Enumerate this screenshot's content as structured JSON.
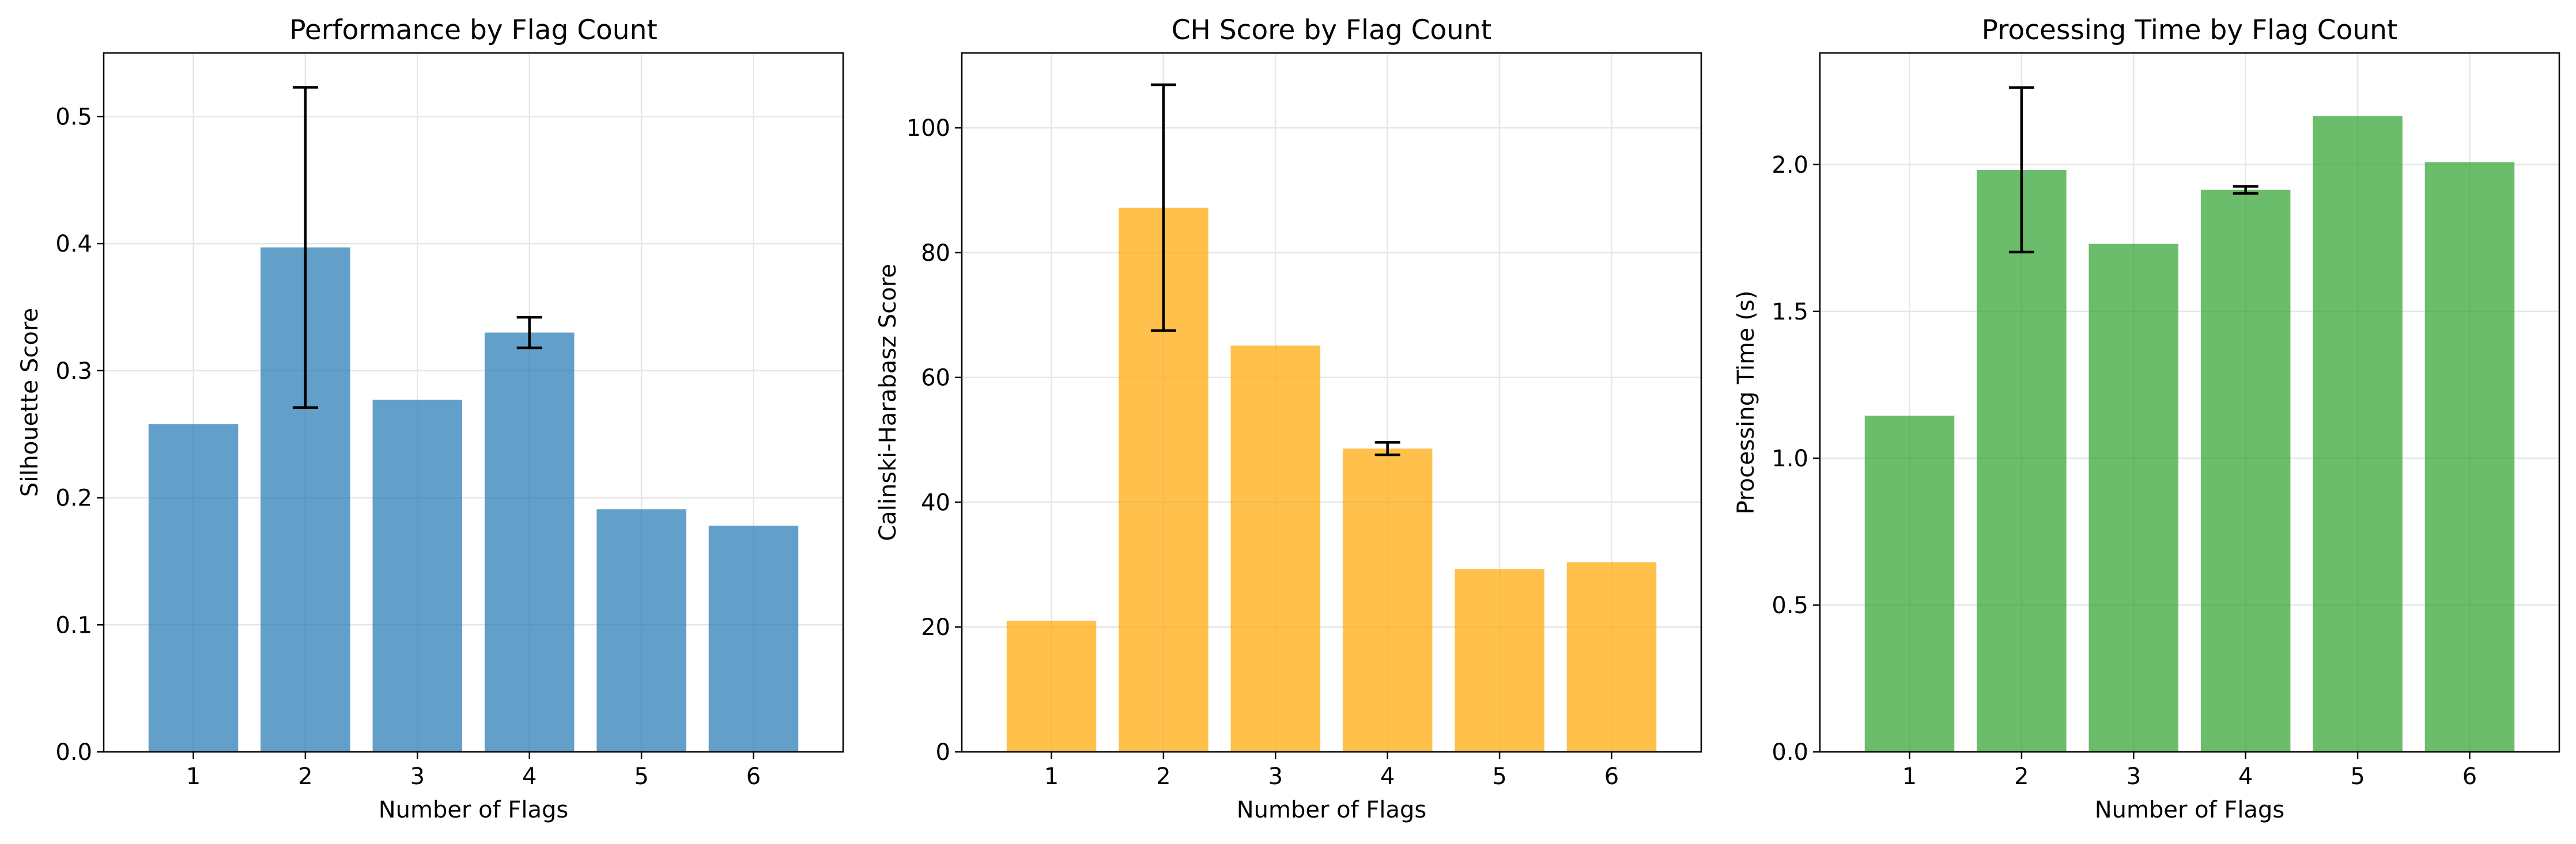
{
  "chart_data": [
    {
      "type": "bar",
      "title": "Performance by Flag Count",
      "xlabel": "Number of Flags",
      "ylabel": "Silhouette Score",
      "categories": [
        "1",
        "2",
        "3",
        "4",
        "5",
        "6"
      ],
      "values": [
        0.258,
        0.397,
        0.277,
        0.33,
        0.191,
        0.178
      ],
      "error": [
        null,
        0.126,
        null,
        0.012,
        null,
        null
      ],
      "ylim": [
        0,
        0.55
      ],
      "yticks": [
        0.0,
        0.1,
        0.2,
        0.3,
        0.4,
        0.5
      ],
      "ytick_labels": [
        "0.0",
        "0.1",
        "0.2",
        "0.3",
        "0.4",
        "0.5"
      ],
      "color": "#1f77b4",
      "grid": true
    },
    {
      "type": "bar",
      "title": "CH Score by Flag Count",
      "xlabel": "Number of Flags",
      "ylabel": "Calinski-Harabasz Score",
      "categories": [
        "1",
        "2",
        "3",
        "4",
        "5",
        "6"
      ],
      "values": [
        21.0,
        87.2,
        65.1,
        48.6,
        29.3,
        30.4
      ],
      "error": [
        null,
        19.7,
        null,
        1.0,
        null,
        null
      ],
      "ylim": [
        0,
        112
      ],
      "yticks": [
        0,
        20,
        40,
        60,
        80,
        100
      ],
      "ytick_labels": [
        "0",
        "20",
        "40",
        "60",
        "80",
        "100"
      ],
      "color": "#ffa500",
      "grid": true
    },
    {
      "type": "bar",
      "title": "Processing Time by Flag Count",
      "xlabel": "Number of Flags",
      "ylabel": "Processing Time (s)",
      "categories": [
        "1",
        "2",
        "3",
        "4",
        "5",
        "6"
      ],
      "values": [
        1.145,
        1.982,
        1.73,
        1.914,
        2.165,
        2.008
      ],
      "error": [
        null,
        0.28,
        null,
        0.012,
        null,
        null
      ],
      "ylim": [
        0,
        2.38
      ],
      "yticks": [
        0.0,
        0.5,
        1.0,
        1.5,
        2.0
      ],
      "ytick_labels": [
        "0.0",
        "0.5",
        "1.0",
        "1.5",
        "2.0"
      ],
      "color": "#2ca02c",
      "grid": true
    }
  ]
}
